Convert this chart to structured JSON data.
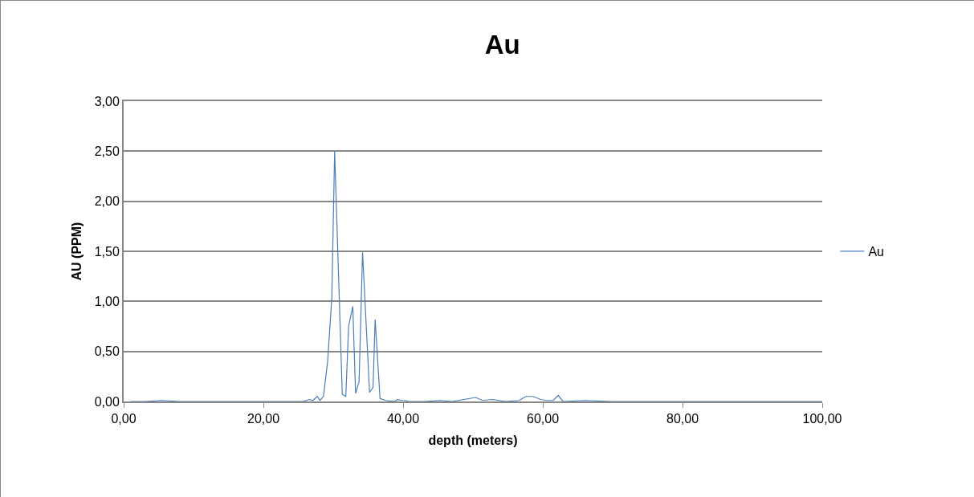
{
  "chart_data": {
    "type": "line",
    "title": "Au",
    "xlabel": "depth (meters)",
    "ylabel": "AU (PPM)",
    "x": [
      1,
      3,
      5.5,
      8,
      10.5,
      14,
      18,
      22,
      25.7,
      26.6,
      27.1,
      27.7,
      28.1,
      28.6,
      29.2,
      29.8,
      30.2,
      31.3,
      31.8,
      32.2,
      32.8,
      33.2,
      33.7,
      34.2,
      35.2,
      35.7,
      36.0,
      36.7,
      37.5,
      38.8,
      39.2,
      39.7,
      40.3,
      40.8,
      43,
      45.4,
      47,
      50.4,
      51.4,
      52.8,
      54.7,
      56.6,
      57.6,
      58.6,
      59.7,
      60.6,
      61.5,
      62.2,
      62.9,
      66,
      70,
      75,
      80,
      85,
      90,
      95,
      100
    ],
    "series": [
      {
        "name": "Au",
        "color": "#4a7ebb",
        "values": [
          0.0,
          0.0,
          0.01,
          0.0,
          0.0,
          0.0,
          0.0,
          0.0,
          0.0,
          0.02,
          0.01,
          0.05,
          0.01,
          0.05,
          0.4,
          1.04,
          2.5,
          0.07,
          0.05,
          0.75,
          0.95,
          0.08,
          0.2,
          1.49,
          0.09,
          0.14,
          0.82,
          0.03,
          0.01,
          0.0,
          0.02,
          0.01,
          0.01,
          0.0,
          0.0,
          0.01,
          0.0,
          0.04,
          0.01,
          0.02,
          0.0,
          0.01,
          0.05,
          0.05,
          0.02,
          0.01,
          0.01,
          0.06,
          0.0,
          0.01,
          0.0,
          0.0,
          0.0,
          0.0,
          0.0,
          0.0,
          0.0
        ]
      }
    ],
    "xlim": [
      0,
      100
    ],
    "xticks": [
      {
        "value": 0,
        "label": "0,00"
      },
      {
        "value": 20,
        "label": "20,00"
      },
      {
        "value": 40,
        "label": "40,00"
      },
      {
        "value": 60,
        "label": "60,00"
      },
      {
        "value": 80,
        "label": "80,00"
      },
      {
        "value": 100,
        "label": "100,00"
      }
    ],
    "ylim": [
      0,
      3
    ],
    "yticks": [
      {
        "value": 0,
        "label": "0,00"
      },
      {
        "value": 0.5,
        "label": "0,50"
      },
      {
        "value": 1,
        "label": "1,00"
      },
      {
        "value": 1.5,
        "label": "1,50"
      },
      {
        "value": 2,
        "label": "2,00"
      },
      {
        "value": 2.5,
        "label": "2,50"
      },
      {
        "value": 3,
        "label": "3,00"
      }
    ],
    "grid": "y",
    "legend": "right",
    "marker": "none",
    "line_style": "solid"
  }
}
